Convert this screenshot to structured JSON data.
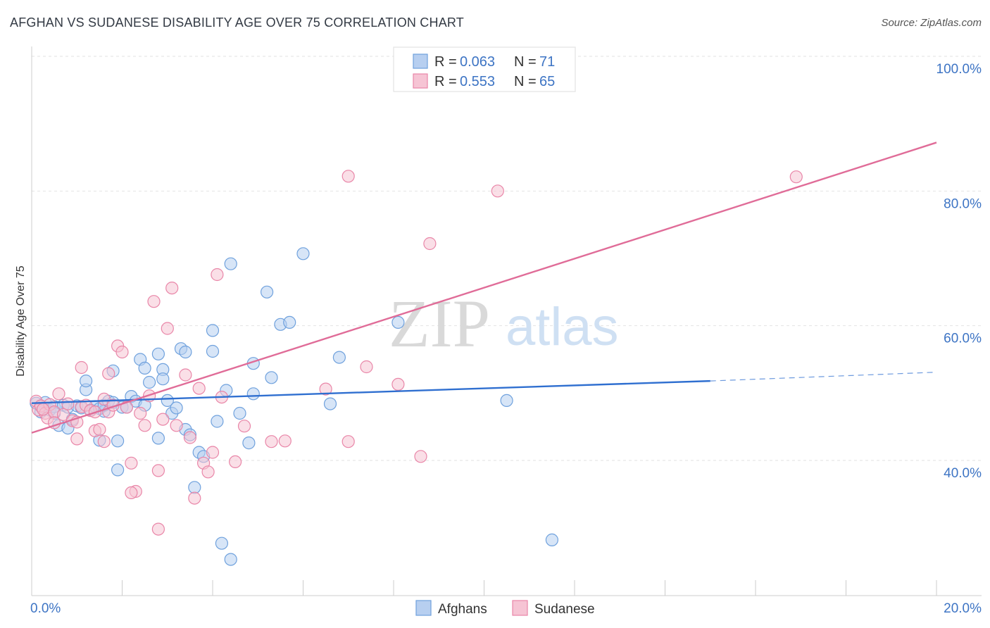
{
  "title": "AFGHAN VS SUDANESE DISABILITY AGE OVER 75 CORRELATION CHART",
  "source": "Source: ZipAtlas.com",
  "watermark": {
    "zip": "ZIP",
    "atlas": "atlas"
  },
  "chart_data": {
    "type": "scatter",
    "title": "AFGHAN VS SUDANESE DISABILITY AGE OVER 75 CORRELATION CHART",
    "xlabel": "",
    "ylabel": "Disability Age Over 75",
    "xlim": [
      0,
      20
    ],
    "ylim": [
      20,
      102
    ],
    "x_tick_labels": [
      {
        "value": 0,
        "label": "0.0%"
      },
      {
        "value": 20,
        "label": "20.0%"
      }
    ],
    "y_tick_labels": [
      {
        "value": 40,
        "label": "40.0%"
      },
      {
        "value": 60,
        "label": "60.0%"
      },
      {
        "value": 80,
        "label": "80.0%"
      },
      {
        "value": 100,
        "label": "100.0%"
      }
    ],
    "grid": true,
    "legend": [
      {
        "name": "Afghans",
        "r_label": "R =",
        "r_value": "0.063",
        "n_label": "N =",
        "n_value": "71",
        "color": "#6fa1dd",
        "fill": "#b7cff0"
      },
      {
        "name": "Sudanese",
        "r_label": "R =",
        "r_value": "0.553",
        "n_label": "N =",
        "n_value": "65",
        "color": "#e986a8",
        "fill": "#f6c4d4"
      }
    ],
    "series": [
      {
        "name": "Afghans",
        "color": "#6fa1dd",
        "trend": {
          "x0": 0.0,
          "y0": 48.5,
          "x1": 15.0,
          "y1": 51.8,
          "dash_to_x": 20.0,
          "dash_to_y": 53.1,
          "color": "#2f6fd0"
        },
        "points": [
          [
            0.1,
            48.5
          ],
          [
            0.2,
            48.0
          ],
          [
            0.2,
            47.2
          ],
          [
            0.3,
            47.8
          ],
          [
            0.3,
            48.6
          ],
          [
            0.4,
            47.5
          ],
          [
            0.5,
            48.0
          ],
          [
            0.5,
            47.0
          ],
          [
            0.6,
            45.2
          ],
          [
            0.7,
            48.2
          ],
          [
            0.8,
            47.9
          ],
          [
            0.8,
            44.8
          ],
          [
            0.9,
            46.1
          ],
          [
            1.0,
            48.1
          ],
          [
            1.1,
            47.8
          ],
          [
            1.2,
            50.5
          ],
          [
            1.3,
            47.5
          ],
          [
            1.4,
            48.0
          ],
          [
            1.5,
            47.7
          ],
          [
            1.5,
            43.0
          ],
          [
            1.2,
            51.8
          ],
          [
            1.6,
            47.3
          ],
          [
            1.6,
            48.2
          ],
          [
            1.7,
            48.8
          ],
          [
            1.8,
            53.3
          ],
          [
            1.8,
            48.6
          ],
          [
            1.9,
            42.9
          ],
          [
            1.9,
            38.6
          ],
          [
            2.0,
            47.9
          ],
          [
            2.1,
            47.9
          ],
          [
            2.2,
            49.5
          ],
          [
            2.3,
            48.8
          ],
          [
            2.4,
            55.0
          ],
          [
            2.5,
            48.2
          ],
          [
            2.5,
            53.7
          ],
          [
            2.6,
            51.6
          ],
          [
            2.8,
            55.8
          ],
          [
            2.8,
            43.3
          ],
          [
            2.9,
            53.5
          ],
          [
            2.9,
            52.1
          ],
          [
            3.0,
            48.9
          ],
          [
            3.1,
            47.0
          ],
          [
            3.2,
            47.8
          ],
          [
            3.3,
            56.6
          ],
          [
            3.4,
            56.1
          ],
          [
            3.4,
            44.6
          ],
          [
            3.5,
            43.8
          ],
          [
            3.6,
            36.0
          ],
          [
            3.7,
            41.2
          ],
          [
            3.8,
            40.6
          ],
          [
            4.0,
            59.3
          ],
          [
            4.0,
            56.2
          ],
          [
            4.1,
            45.8
          ],
          [
            4.3,
            50.4
          ],
          [
            4.4,
            69.2
          ],
          [
            4.6,
            47.0
          ],
          [
            4.8,
            42.6
          ],
          [
            4.9,
            54.4
          ],
          [
            4.9,
            49.9
          ],
          [
            5.2,
            65.0
          ],
          [
            5.3,
            52.3
          ],
          [
            5.5,
            60.2
          ],
          [
            5.7,
            60.5
          ],
          [
            6.0,
            70.7
          ],
          [
            6.6,
            48.4
          ],
          [
            6.8,
            55.3
          ],
          [
            4.2,
            27.7
          ],
          [
            4.4,
            25.3
          ],
          [
            8.1,
            60.5
          ],
          [
            10.5,
            48.9
          ],
          [
            11.5,
            28.2
          ]
        ]
      },
      {
        "name": "Sudanese",
        "color": "#e986a8",
        "trend": {
          "x0": 0.0,
          "y0": 44.1,
          "x1": 20.0,
          "y1": 87.2,
          "color": "#e06c98"
        },
        "points": [
          [
            0.1,
            48.8
          ],
          [
            0.15,
            47.5
          ],
          [
            0.2,
            48.1
          ],
          [
            0.3,
            47.0
          ],
          [
            0.35,
            46.3
          ],
          [
            0.4,
            48.3
          ],
          [
            0.5,
            47.2
          ],
          [
            0.5,
            45.6
          ],
          [
            0.6,
            49.9
          ],
          [
            0.7,
            46.8
          ],
          [
            0.8,
            48.4
          ],
          [
            0.9,
            45.9
          ],
          [
            1.0,
            45.7
          ],
          [
            1.0,
            43.2
          ],
          [
            1.1,
            48.0
          ],
          [
            1.1,
            53.8
          ],
          [
            1.2,
            48.2
          ],
          [
            1.3,
            47.4
          ],
          [
            1.4,
            44.4
          ],
          [
            1.4,
            47.2
          ],
          [
            1.5,
            44.6
          ],
          [
            1.6,
            42.8
          ],
          [
            1.6,
            49.1
          ],
          [
            1.7,
            47.2
          ],
          [
            1.7,
            52.9
          ],
          [
            1.8,
            48.2
          ],
          [
            1.9,
            57.0
          ],
          [
            2.0,
            56.1
          ],
          [
            2.1,
            47.9
          ],
          [
            2.2,
            39.6
          ],
          [
            2.3,
            35.4
          ],
          [
            2.2,
            35.2
          ],
          [
            2.4,
            47.0
          ],
          [
            2.5,
            45.2
          ],
          [
            2.6,
            49.6
          ],
          [
            2.7,
            63.6
          ],
          [
            2.8,
            38.5
          ],
          [
            2.8,
            29.8
          ],
          [
            2.9,
            46.1
          ],
          [
            3.0,
            59.6
          ],
          [
            3.1,
            65.6
          ],
          [
            3.2,
            45.2
          ],
          [
            3.4,
            52.7
          ],
          [
            3.5,
            43.4
          ],
          [
            3.6,
            34.4
          ],
          [
            3.7,
            50.7
          ],
          [
            3.8,
            39.6
          ],
          [
            3.9,
            38.3
          ],
          [
            4.0,
            41.2
          ],
          [
            4.2,
            49.4
          ],
          [
            4.1,
            67.6
          ],
          [
            4.5,
            39.8
          ],
          [
            4.7,
            45.1
          ],
          [
            5.3,
            42.8
          ],
          [
            5.6,
            42.9
          ],
          [
            6.5,
            50.6
          ],
          [
            7.0,
            82.2
          ],
          [
            7.4,
            53.9
          ],
          [
            7.0,
            42.8
          ],
          [
            8.1,
            51.3
          ],
          [
            8.6,
            40.6
          ],
          [
            8.8,
            72.2
          ],
          [
            10.3,
            80.0
          ],
          [
            16.9,
            82.1
          ],
          [
            0.25,
            47.6
          ]
        ]
      }
    ]
  }
}
